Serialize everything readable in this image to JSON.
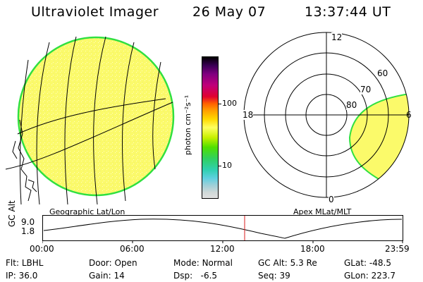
{
  "header": {
    "title": "Ultraviolet Imager",
    "date": "26 May 07",
    "time": "13:37:44 UT"
  },
  "colors": {
    "earth_fill": "#fbfa6a",
    "earth_limb": "#30e040",
    "timeline_marker": "#d81e1e"
  },
  "left_panel": {
    "label": "Geographic Lat/Lon"
  },
  "right_panel": {
    "label": "Apex MLat/MLT",
    "mlt_labels": {
      "top": "12",
      "left": "18",
      "right": "6",
      "bottom": "0"
    },
    "mlat_labels": [
      "60",
      "70",
      "80"
    ]
  },
  "colorbar": {
    "unit": "photon cm⁻²s⁻¹",
    "ticks": [
      "100",
      "10"
    ],
    "scale": "log",
    "colors": [
      "#000000",
      "#3a0055",
      "#800080",
      "#c0007a",
      "#e00030",
      "#ff6000",
      "#ffa000",
      "#ffd800",
      "#ffff60",
      "#c8f000",
      "#50e000",
      "#30d060",
      "#30d0b0",
      "#60d0e0",
      "#a0d0d8",
      "#d0d8d8",
      "#e0e0e0"
    ]
  },
  "timeline": {
    "y_label": "GC Alt",
    "y_ticks": [
      "9.0",
      "1.8"
    ],
    "x_ticks": [
      "00:00",
      "06:00",
      "12:00",
      "18:00",
      "23:59"
    ]
  },
  "info": {
    "row1": [
      {
        "label": "Flt:",
        "value": "LBHL"
      },
      {
        "label": "Door:",
        "value": "Open"
      },
      {
        "label": "Mode:",
        "value": "Normal"
      },
      {
        "label": "GC Alt:",
        "value": "5.3 Re"
      },
      {
        "label": "GLat:",
        "value": "-48.5"
      }
    ],
    "row2": [
      {
        "label": "IP:",
        "value": "36.0"
      },
      {
        "label": "Gain:",
        "value": "14"
      },
      {
        "label": "Dsp:",
        "value": "-6.5"
      },
      {
        "label": "Seq:",
        "value": "39"
      },
      {
        "label": "GLon:",
        "value": "223.7"
      }
    ]
  }
}
